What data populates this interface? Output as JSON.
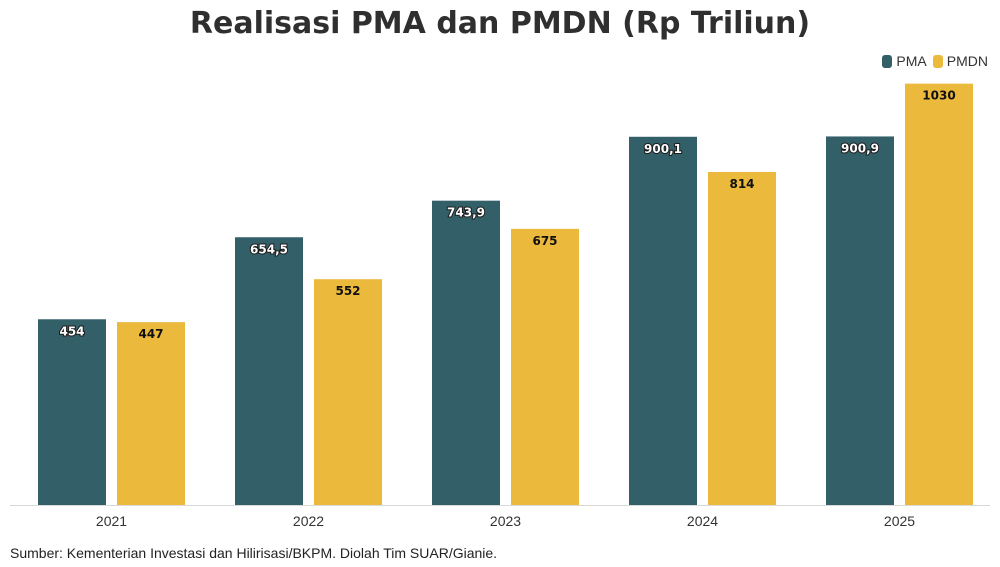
{
  "chart_data": {
    "type": "bar",
    "title": "Realisasi PMA dan PMDN (Rp Triliun)",
    "categories": [
      "2021",
      "2022",
      "2023",
      "2024",
      "2025"
    ],
    "series": [
      {
        "name": "PMA",
        "color": "#335f69",
        "values": [
          454,
          654.5,
          743.9,
          900.1,
          900.9
        ],
        "labels": [
          "454",
          "654,5",
          "743,9",
          "900,1",
          "900,9"
        ]
      },
      {
        "name": "PMDN",
        "color": "#ebb93c",
        "values": [
          447,
          552,
          675,
          814,
          1030
        ],
        "labels": [
          "447",
          "552",
          "675",
          "814",
          "1030"
        ]
      }
    ],
    "ylim": [
      0,
      1100
    ],
    "legend": "top-right",
    "grid": false
  },
  "source": "Sumber: Kementerian Investasi dan Hilirisasi/BKPM. Diolah Tim SUAR/Gianie."
}
